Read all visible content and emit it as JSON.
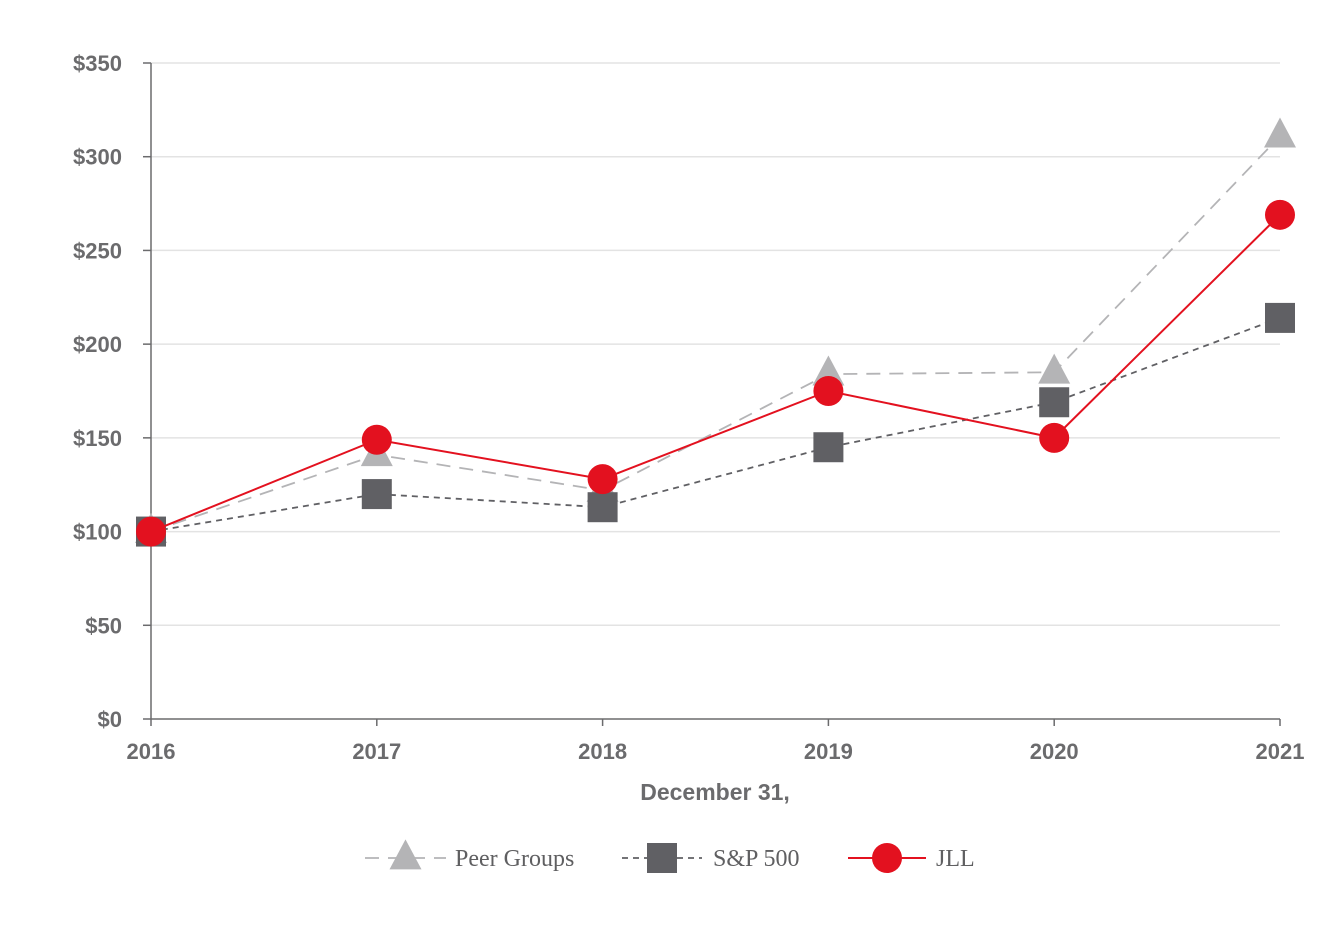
{
  "chart_data": {
    "type": "line",
    "title": "",
    "xlabel": "December 31,",
    "ylabel": "",
    "categories": [
      "2016",
      "2017",
      "2018",
      "2019",
      "2020",
      "2021"
    ],
    "ylim": [
      0,
      350
    ],
    "yticks": [
      0,
      50,
      100,
      150,
      200,
      250,
      300,
      350
    ],
    "ytick_labels": [
      "$0",
      "$50",
      "$100",
      "$150",
      "$200",
      "$250",
      "$300",
      "$350"
    ],
    "grid": true,
    "legend_position": "bottom-center",
    "series": [
      {
        "name": "Peer Groups",
        "marker": "triangle",
        "line_style": "long-dash",
        "color": "#b4b4b6",
        "values": [
          100,
          141,
          122,
          184,
          185,
          311
        ]
      },
      {
        "name": "S&P 500",
        "marker": "square",
        "line_style": "short-dash",
        "color": "#606064",
        "values": [
          100,
          120,
          113,
          145,
          169,
          214
        ]
      },
      {
        "name": "JLL",
        "marker": "circle",
        "line_style": "solid",
        "color": "#e3111f",
        "values": [
          100,
          149,
          128,
          175,
          150,
          269
        ]
      }
    ]
  }
}
